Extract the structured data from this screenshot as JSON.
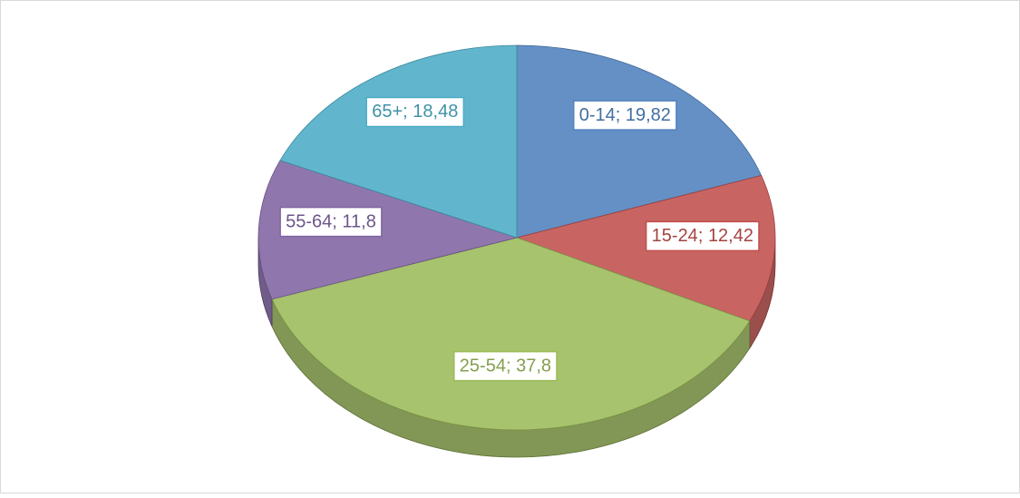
{
  "chart_data": {
    "type": "pie",
    "categories": [
      "0-14",
      "15-24",
      "25-54",
      "55-64",
      "65+"
    ],
    "values": [
      19.82,
      12.42,
      37.8,
      11.8,
      18.48
    ],
    "value_labels": [
      "19,82",
      "12,42",
      "37,8",
      "11,8",
      "18,48"
    ],
    "label_separator": "; ",
    "colors": [
      "#4f81bd",
      "#c0504d",
      "#9bbb59",
      "#8064a2",
      "#4bacc6"
    ],
    "start_angle": 0,
    "direction": "clockwise",
    "three_d": true
  }
}
